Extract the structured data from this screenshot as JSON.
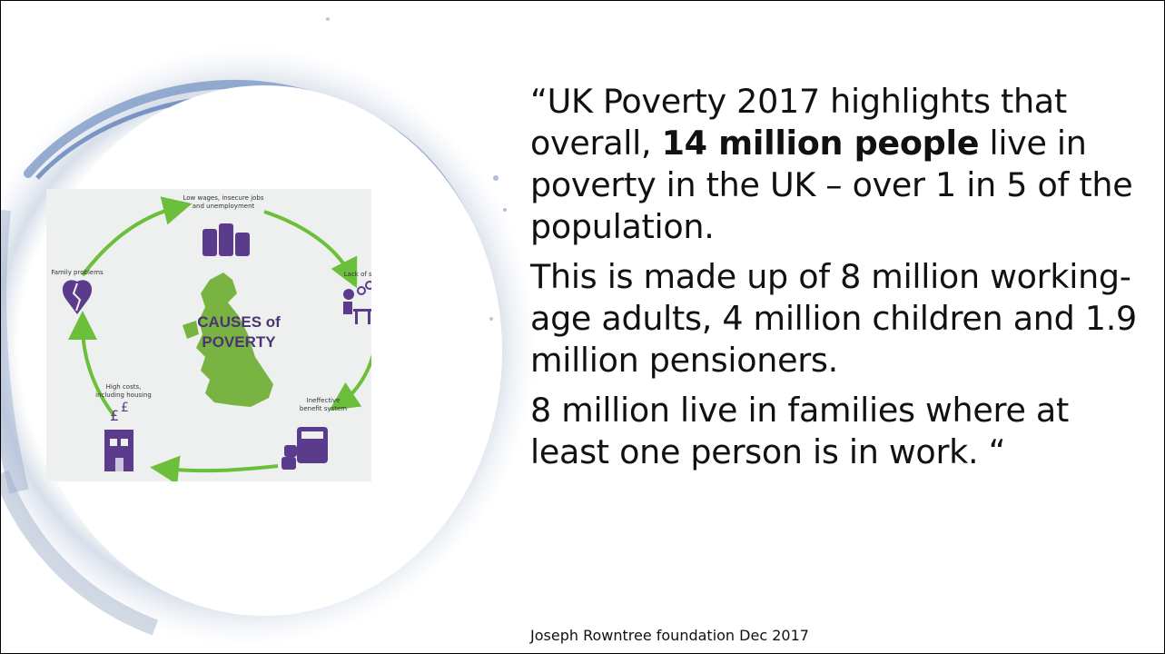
{
  "diagram": {
    "title_line1": "CAUSES of",
    "title_line2": "POVERTY",
    "labels": {
      "low_wages_1": "Low wages, insecure jobs",
      "low_wages_2": "and unemployment",
      "lack_skills": "Lack of skills",
      "benefit_1": "Ineffective",
      "benefit_2": "benefit system",
      "high_costs_1": "High costs,",
      "high_costs_2": "including housing",
      "family": "Family problems"
    },
    "colors": {
      "arrow": "#6bbf3a",
      "icon": "#5b3b8c",
      "map": "#79b341",
      "title": "#4a3474"
    }
  },
  "quote": {
    "p1_before": "“UK Poverty 2017 highlights that overall, ",
    "p1_bold": "14 million people",
    "p1_after": " live in poverty in the UK – over 1 in 5 of the population.",
    "p2": "This is made up of 8 million working-age adults, 4 million children and 1.9 million pensioners.",
    "p3": "8 million live in families where at least one person is in work. “"
  },
  "source": "Joseph Rowntree foundation Dec 2017"
}
